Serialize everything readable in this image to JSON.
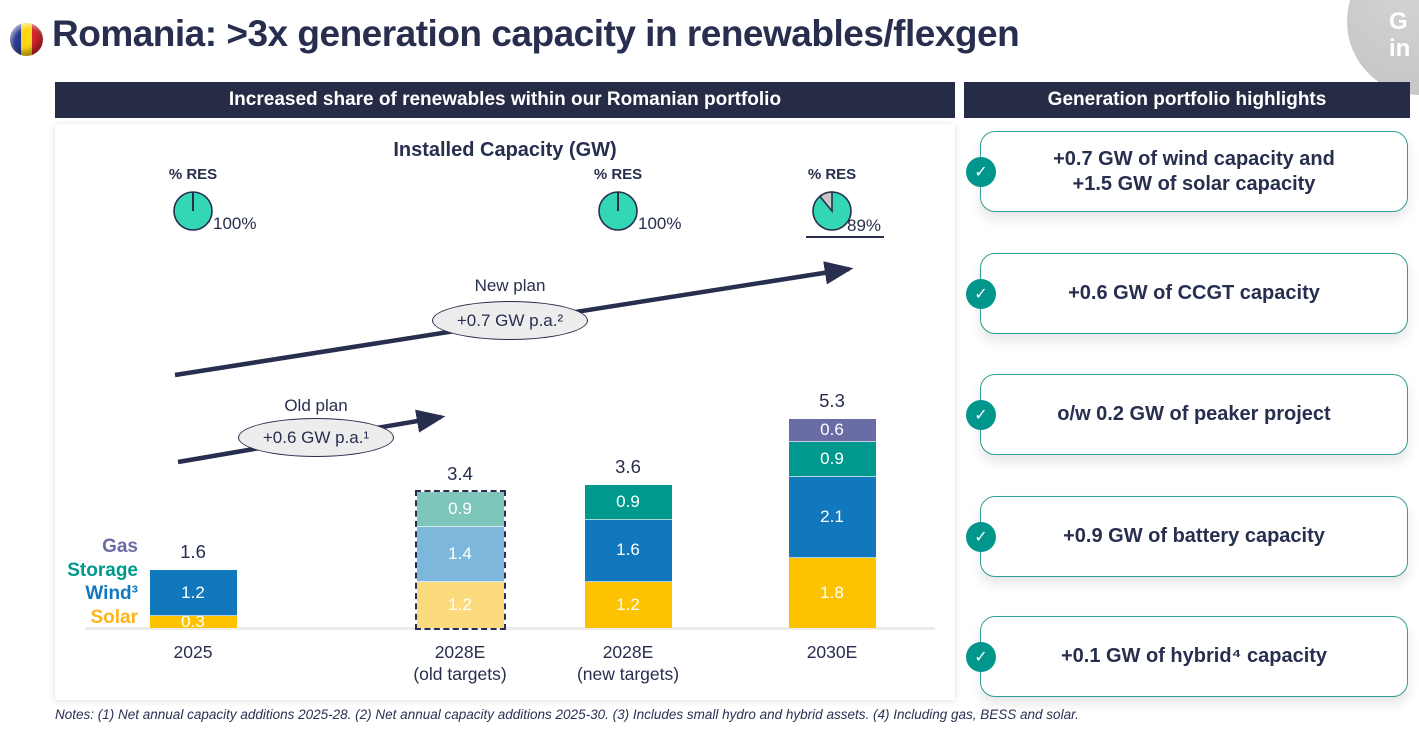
{
  "slide": {
    "title": "Romania: >3x generation capacity in renewables/flexgen",
    "flag_icon": "romania-flag",
    "corner_badge": {
      "line1": "G",
      "line2": "in"
    }
  },
  "left_panel": {
    "header": "Increased share of renewables within our Romanian portfolio",
    "chart_title": "Installed Capacity (GW)",
    "plans": {
      "new": {
        "label": "New plan",
        "rate": "+0.7 GW p.a.²"
      },
      "old": {
        "label": "Old plan",
        "rate": "+0.6 GW p.a.¹"
      }
    },
    "legend": [
      {
        "label": "Gas",
        "color": "#6A6CA5"
      },
      {
        "label": "Storage",
        "color": "#00998C"
      },
      {
        "label": "Wind³",
        "color": "#1378BF"
      },
      {
        "label": "Solar",
        "color": "#FDB515"
      }
    ]
  },
  "right_panel": {
    "header": "Generation portfolio highlights",
    "check_color": "#00968C",
    "border_color": "#2F9E93",
    "highlights": [
      {
        "text": "+0.7 GW of wind capacity and\n+1.5 GW of solar capacity"
      },
      {
        "text": "+0.6 GW of CCGT capacity"
      },
      {
        "text": "o/w 0.2 GW of peaker project"
      },
      {
        "text": "+0.9 GW of battery capacity"
      },
      {
        "text": "+0.1 GW of hybrid⁴ capacity"
      }
    ]
  },
  "notes": "Notes: (1) Net annual capacity additions 2025-28. (2) Net annual capacity additions 2025-30. (3) Includes small hydro and hybrid assets. (4) Including gas, BESS and solar.",
  "chart_data": {
    "type": "bar",
    "stacked": true,
    "title": "Installed Capacity (GW)",
    "unit": "GW",
    "grid": false,
    "categories": [
      "2025",
      "2028E\n(old targets)",
      "2028E\n(new targets)",
      "2030E"
    ],
    "series": [
      {
        "name": "Solar",
        "color": "#FDC300",
        "muted_color": "#FBDB7E",
        "values": [
          0.3,
          1.2,
          1.2,
          1.8
        ]
      },
      {
        "name": "Wind",
        "color": "#1178BE",
        "muted_color": "#7EB7DC",
        "values": [
          1.2,
          1.4,
          1.6,
          2.1
        ]
      },
      {
        "name": "Storage",
        "color": "#00998E",
        "muted_color": "#7FC6BA",
        "values": [
          0,
          0.9,
          0.9,
          0.9
        ]
      },
      {
        "name": "Gas",
        "color": "#6A6CA5",
        "muted_color": "#A9AACB",
        "values": [
          0,
          0,
          0,
          0.6
        ]
      }
    ],
    "totals": [
      1.6,
      3.4,
      3.6,
      5.3
    ],
    "muted_category_index": 1,
    "res_pies": [
      {
        "label": "% RES",
        "value": 100,
        "display": "100%",
        "filled_color": "#33D6B5",
        "rest_color": "#C9C9C9"
      },
      {
        "label": "% RES",
        "value": 100,
        "display": "100%",
        "filled_color": "#33D6B5",
        "rest_color": "#C9C9C9"
      },
      {
        "label": "% RES",
        "value": 89,
        "display": "89%",
        "filled_color": "#33D6B5",
        "rest_color": "#C9C9C9"
      }
    ],
    "annotations": [
      {
        "label": "New plan",
        "rate": "+0.7 GW p.a.²",
        "note": "Net annual capacity additions 2025-30"
      },
      {
        "label": "Old plan",
        "rate": "+0.6 GW p.a.¹",
        "note": "Net annual capacity additions 2025-28"
      }
    ]
  }
}
